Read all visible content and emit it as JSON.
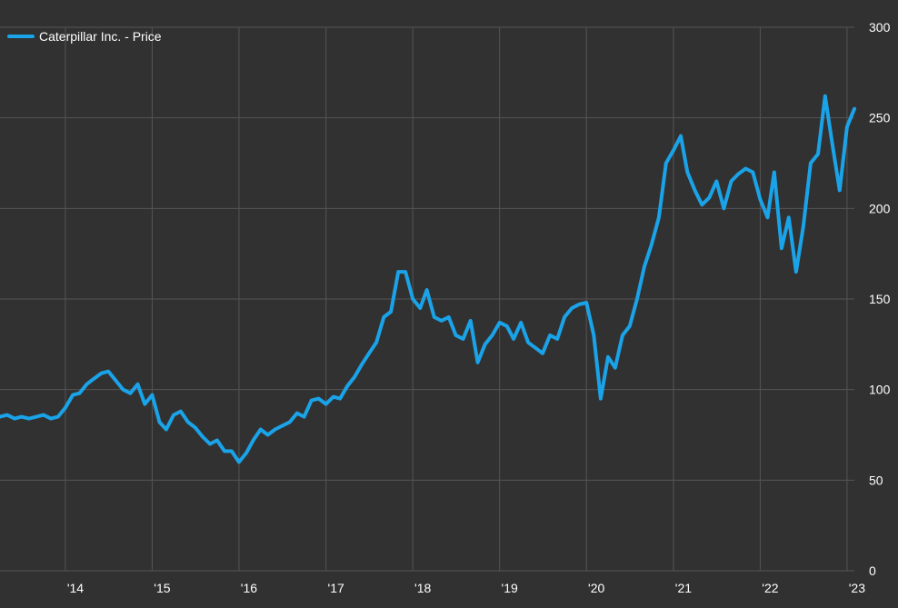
{
  "colors": {
    "background": "#313131",
    "grid": "#555555",
    "axis_text": "#ffffff",
    "series": "#1aa3e8"
  },
  "chart_data": {
    "type": "line",
    "title": "",
    "xlabel": "",
    "ylabel": "",
    "grid": true,
    "legend_position": "top-left",
    "x_range": [
      "2013-04-01",
      "2023-02-01"
    ],
    "ylim": [
      0,
      300
    ],
    "y_ticks": [
      0,
      50,
      100,
      150,
      200,
      250,
      300
    ],
    "y_tick_labels": [
      "0",
      "50",
      "100",
      "150",
      "200",
      "250",
      "300"
    ],
    "x_ticks": [
      "2014-01-01",
      "2015-01-01",
      "2016-01-01",
      "2017-01-01",
      "2018-01-01",
      "2019-01-01",
      "2020-01-01",
      "2021-01-01",
      "2022-01-01",
      "2023-01-01"
    ],
    "x_tick_labels": [
      "'14",
      "'15",
      "'16",
      "'17",
      "'18",
      "'19",
      "'20",
      "'21",
      "'22",
      "'23"
    ],
    "series": [
      {
        "name": "Caterpillar Inc. - Price",
        "x": [
          "2013-04-01",
          "2013-05-01",
          "2013-06-01",
          "2013-07-01",
          "2013-08-01",
          "2013-09-01",
          "2013-10-01",
          "2013-11-01",
          "2013-12-01",
          "2014-01-01",
          "2014-02-01",
          "2014-03-01",
          "2014-04-01",
          "2014-05-01",
          "2014-06-01",
          "2014-07-01",
          "2014-08-01",
          "2014-09-01",
          "2014-10-01",
          "2014-11-01",
          "2014-12-01",
          "2015-01-01",
          "2015-02-01",
          "2015-03-01",
          "2015-04-01",
          "2015-05-01",
          "2015-06-01",
          "2015-07-01",
          "2015-08-01",
          "2015-09-01",
          "2015-10-01",
          "2015-11-01",
          "2015-12-01",
          "2016-01-01",
          "2016-02-01",
          "2016-03-01",
          "2016-04-01",
          "2016-05-01",
          "2016-06-01",
          "2016-07-01",
          "2016-08-01",
          "2016-09-01",
          "2016-10-01",
          "2016-11-01",
          "2016-12-01",
          "2017-01-01",
          "2017-02-01",
          "2017-03-01",
          "2017-04-01",
          "2017-05-01",
          "2017-06-01",
          "2017-07-01",
          "2017-08-01",
          "2017-09-01",
          "2017-10-01",
          "2017-11-01",
          "2017-12-01",
          "2018-01-01",
          "2018-02-01",
          "2018-03-01",
          "2018-04-01",
          "2018-05-01",
          "2018-06-01",
          "2018-07-01",
          "2018-08-01",
          "2018-09-01",
          "2018-10-01",
          "2018-11-01",
          "2018-12-01",
          "2019-01-01",
          "2019-02-01",
          "2019-03-01",
          "2019-04-01",
          "2019-05-01",
          "2019-06-01",
          "2019-07-01",
          "2019-08-01",
          "2019-09-01",
          "2019-10-01",
          "2019-11-01",
          "2019-12-01",
          "2020-01-01",
          "2020-02-01",
          "2020-03-01",
          "2020-04-01",
          "2020-05-01",
          "2020-06-01",
          "2020-07-01",
          "2020-08-01",
          "2020-09-01",
          "2020-10-01",
          "2020-11-01",
          "2020-12-01",
          "2021-01-01",
          "2021-02-01",
          "2021-03-01",
          "2021-04-01",
          "2021-05-01",
          "2021-06-01",
          "2021-07-01",
          "2021-08-01",
          "2021-09-01",
          "2021-10-01",
          "2021-11-01",
          "2021-12-01",
          "2022-01-01",
          "2022-02-01",
          "2022-03-01",
          "2022-04-01",
          "2022-05-01",
          "2022-06-01",
          "2022-07-01",
          "2022-08-01",
          "2022-09-01",
          "2022-10-01",
          "2022-11-01",
          "2022-12-01",
          "2023-01-01",
          "2023-02-01"
        ],
        "values": [
          85,
          86,
          84,
          85,
          84,
          85,
          86,
          84,
          85,
          90,
          97,
          98,
          103,
          106,
          109,
          110,
          105,
          100,
          98,
          103,
          92,
          97,
          82,
          78,
          86,
          88,
          82,
          79,
          74,
          70,
          72,
          66,
          66,
          60,
          65,
          72,
          78,
          75,
          78,
          80,
          82,
          87,
          85,
          94,
          95,
          92,
          96,
          95,
          102,
          107,
          114,
          120,
          126,
          140,
          143,
          165,
          165,
          150,
          145,
          155,
          140,
          138,
          140,
          130,
          128,
          138,
          115,
          125,
          130,
          137,
          135,
          128,
          137,
          126,
          123,
          120,
          130,
          128,
          140,
          145,
          147,
          148,
          130,
          95,
          118,
          112,
          130,
          135,
          150,
          168,
          180,
          195,
          225,
          232,
          240,
          220,
          210,
          202,
          206,
          215,
          200,
          215,
          219,
          222,
          220,
          205,
          195,
          220,
          178,
          195,
          165,
          190,
          225,
          230,
          262,
          235,
          210,
          245,
          255
        ],
        "color": "#1aa3e8"
      }
    ]
  }
}
